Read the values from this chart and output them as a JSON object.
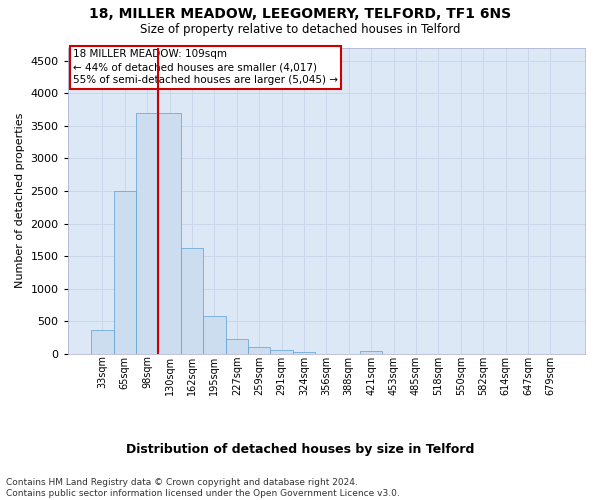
{
  "title1": "18, MILLER MEADOW, LEEGOMERY, TELFORD, TF1 6NS",
  "title2": "Size of property relative to detached houses in Telford",
  "xlabel": "Distribution of detached houses by size in Telford",
  "ylabel": "Number of detached properties",
  "footnote1": "Contains HM Land Registry data © Crown copyright and database right 2024.",
  "footnote2": "Contains public sector information licensed under the Open Government Licence v3.0.",
  "property_label": "18 MILLER MEADOW: 109sqm",
  "annotation_line1": "← 44% of detached houses are smaller (4,017)",
  "annotation_line2": "55% of semi-detached houses are larger (5,045) →",
  "bar_color": "#ccddf0",
  "bar_edge_color": "#5a9fd4",
  "bg_color": "#dce8f5",
  "grid_color": "#c8d8ea",
  "annotation_box_color": "#cc0000",
  "vline_color": "#cc0000",
  "categories": [
    "33sqm",
    "65sqm",
    "98sqm",
    "130sqm",
    "162sqm",
    "195sqm",
    "227sqm",
    "259sqm",
    "291sqm",
    "324sqm",
    "356sqm",
    "388sqm",
    "421sqm",
    "453sqm",
    "485sqm",
    "518sqm",
    "550sqm",
    "582sqm",
    "614sqm",
    "647sqm",
    "679sqm"
  ],
  "values": [
    370,
    2500,
    3700,
    3700,
    1630,
    590,
    225,
    105,
    60,
    40,
    0,
    0,
    55,
    0,
    0,
    0,
    0,
    0,
    0,
    0,
    0
  ],
  "ylim": [
    0,
    4700
  ],
  "yticks": [
    0,
    500,
    1000,
    1500,
    2000,
    2500,
    3000,
    3500,
    4000,
    4500
  ],
  "vline_x_index": 2,
  "figsize": [
    6.0,
    5.0
  ],
  "dpi": 100
}
